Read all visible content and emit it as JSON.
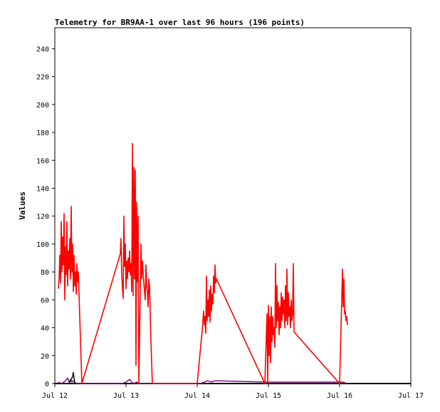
{
  "chart_data": {
    "type": "line",
    "title": "Telemetry for BR9AA-1 over last 96 hours (196 points)",
    "xlabel": "",
    "ylabel": "Values",
    "x_range_days": [
      "Jul 12",
      "Jul 17"
    ],
    "ylim": [
      0,
      255
    ],
    "y_ticks": [
      0,
      20,
      40,
      60,
      80,
      100,
      120,
      140,
      160,
      180,
      200,
      220,
      240
    ],
    "x_ticks": [
      "Jul 12",
      "Jul 13",
      "Jul 14",
      "Jul 15",
      "Jul 16",
      "Jul 17"
    ],
    "grid": false,
    "colors": {
      "main": "#ff0000",
      "secondary": "#800080",
      "tertiary": "#000000",
      "baseline": "#000000"
    },
    "series": [
      {
        "points": [
          [
            0.05,
            68
          ],
          [
            0.06,
            75
          ],
          [
            0.07,
            92
          ],
          [
            0.08,
            72
          ],
          [
            0.09,
            116
          ],
          [
            0.1,
            80
          ],
          [
            0.11,
            105
          ],
          [
            0.12,
            85
          ],
          [
            0.13,
            122
          ],
          [
            0.14,
            60
          ],
          [
            0.15,
            98
          ],
          [
            0.16,
            78
          ],
          [
            0.17,
            116
          ],
          [
            0.18,
            70
          ],
          [
            0.19,
            95
          ],
          [
            0.2,
            82
          ],
          [
            0.21,
            104
          ],
          [
            0.22,
            75
          ],
          [
            0.23,
            127
          ],
          [
            0.24,
            80
          ],
          [
            0.25,
            100
          ],
          [
            0.26,
            66
          ],
          [
            0.27,
            92
          ],
          [
            0.28,
            70
          ],
          [
            0.29,
            80
          ],
          [
            0.3,
            64
          ],
          [
            0.31,
            86
          ],
          [
            0.32,
            73
          ],
          [
            0.33,
            80
          ],
          [
            0.38,
            0
          ],
          [
            0.92,
            93
          ],
          [
            0.93,
            104
          ],
          [
            0.94,
            78
          ],
          [
            0.95,
            68
          ],
          [
            0.96,
            61
          ],
          [
            0.97,
            120
          ],
          [
            0.98,
            84
          ],
          [
            0.99,
            100
          ],
          [
            1.0,
            68
          ],
          [
            1.01,
            88
          ],
          [
            1.02,
            75
          ],
          [
            1.03,
            90
          ],
          [
            1.04,
            80
          ],
          [
            1.05,
            95
          ],
          [
            1.06,
            78
          ],
          [
            1.07,
            86
          ],
          [
            1.08,
            66
          ],
          [
            1.09,
            172
          ],
          [
            1.1,
            63
          ],
          [
            1.11,
            155
          ],
          [
            1.12,
            75
          ],
          [
            1.13,
            153
          ],
          [
            1.14,
            13
          ],
          [
            1.15,
            130
          ],
          [
            1.16,
            73
          ],
          [
            1.17,
            120
          ],
          [
            1.18,
            0
          ],
          [
            1.21,
            100
          ],
          [
            1.22,
            75
          ],
          [
            1.23,
            88
          ],
          [
            1.24,
            80
          ],
          [
            1.25,
            72
          ],
          [
            1.26,
            66
          ],
          [
            1.27,
            60
          ],
          [
            1.28,
            85
          ],
          [
            1.29,
            70
          ],
          [
            1.3,
            66
          ],
          [
            1.31,
            55
          ],
          [
            1.32,
            75
          ],
          [
            1.33,
            70
          ],
          [
            1.35,
            30
          ],
          [
            1.37,
            0
          ],
          [
            1.44,
            0
          ],
          [
            2.0,
            0
          ],
          [
            2.07,
            38
          ],
          [
            2.08,
            45
          ],
          [
            2.09,
            52
          ],
          [
            2.1,
            42
          ],
          [
            2.11,
            48
          ],
          [
            2.12,
            36
          ],
          [
            2.13,
            77
          ],
          [
            2.14,
            45
          ],
          [
            2.15,
            60
          ],
          [
            2.16,
            48
          ],
          [
            2.17,
            67
          ],
          [
            2.18,
            44
          ],
          [
            2.19,
            70
          ],
          [
            2.2,
            52
          ],
          [
            2.21,
            64
          ],
          [
            2.22,
            57
          ],
          [
            2.23,
            77
          ],
          [
            2.24,
            65
          ],
          [
            2.25,
            85
          ],
          [
            2.26,
            72
          ],
          [
            2.27,
            75
          ],
          [
            2.95,
            0
          ],
          [
            2.98,
            50
          ],
          [
            2.99,
            0
          ],
          [
            3.0,
            56
          ],
          [
            3.01,
            20
          ],
          [
            3.02,
            48
          ],
          [
            3.03,
            15
          ],
          [
            3.04,
            55
          ],
          [
            3.05,
            30
          ],
          [
            3.06,
            48
          ],
          [
            3.07,
            35
          ],
          [
            3.08,
            40
          ],
          [
            3.09,
            26
          ],
          [
            3.1,
            86
          ],
          [
            3.11,
            40
          ],
          [
            3.12,
            70
          ],
          [
            3.13,
            45
          ],
          [
            3.14,
            58
          ],
          [
            3.15,
            35
          ],
          [
            3.16,
            55
          ],
          [
            3.17,
            40
          ],
          [
            3.18,
            65
          ],
          [
            3.19,
            45
          ],
          [
            3.2,
            62
          ],
          [
            3.21,
            50
          ],
          [
            3.22,
            60
          ],
          [
            3.23,
            40
          ],
          [
            3.24,
            70
          ],
          [
            3.25,
            45
          ],
          [
            3.26,
            82
          ],
          [
            3.27,
            42
          ],
          [
            3.28,
            65
          ],
          [
            3.29,
            48
          ],
          [
            3.3,
            55
          ],
          [
            3.31,
            40
          ],
          [
            3.32,
            60
          ],
          [
            3.33,
            45
          ],
          [
            3.34,
            50
          ],
          [
            3.35,
            86
          ],
          [
            3.36,
            37
          ],
          [
            4.0,
            0
          ],
          [
            4.02,
            40
          ],
          [
            4.03,
            60
          ],
          [
            4.04,
            82
          ],
          [
            4.05,
            55
          ],
          [
            4.06,
            75
          ],
          [
            4.07,
            50
          ],
          [
            4.08,
            52
          ],
          [
            4.09,
            45
          ],
          [
            4.1,
            48
          ],
          [
            4.11,
            42
          ]
        ],
        "color": "#ff0000"
      },
      {
        "points": [
          [
            0.05,
            1
          ],
          [
            0.1,
            0
          ],
          [
            0.15,
            2
          ],
          [
            0.18,
            4
          ],
          [
            0.2,
            1
          ],
          [
            0.22,
            3
          ],
          [
            0.24,
            1
          ],
          [
            0.26,
            2
          ],
          [
            0.3,
            0
          ],
          [
            0.95,
            0
          ],
          [
            1.0,
            1
          ],
          [
            1.05,
            3
          ],
          [
            1.08,
            1
          ],
          [
            1.1,
            0
          ],
          [
            1.15,
            1
          ],
          [
            1.2,
            0
          ],
          [
            2.05,
            0
          ],
          [
            2.1,
            1
          ],
          [
            2.15,
            2
          ],
          [
            2.2,
            1
          ],
          [
            2.25,
            2
          ],
          [
            3.0,
            1
          ],
          [
            3.1,
            1
          ],
          [
            3.2,
            1
          ],
          [
            3.3,
            1
          ],
          [
            4.05,
            1
          ],
          [
            4.1,
            0
          ]
        ],
        "color": "#800080"
      },
      {
        "points": [
          [
            0.2,
            0
          ],
          [
            0.23,
            3
          ],
          [
            0.25,
            5
          ],
          [
            0.26,
            8
          ],
          [
            0.27,
            4
          ],
          [
            0.28,
            0
          ]
        ],
        "color": "#000000"
      }
    ]
  }
}
